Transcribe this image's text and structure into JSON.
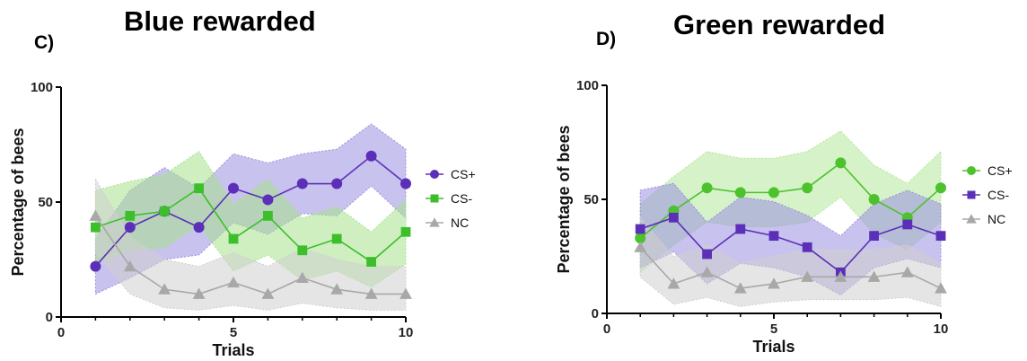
{
  "chart_data": [
    {
      "type": "line",
      "panel_label": "C)",
      "title": "Blue rewarded",
      "xlabel": "Trials",
      "ylabel": "Percentage of bees",
      "xlim": [
        0,
        10
      ],
      "ylim": [
        0,
        100
      ],
      "xticks": [
        "0",
        "5",
        "10"
      ],
      "yticks": [
        "0",
        "50",
        "100"
      ],
      "grid": false,
      "legend_position": "right",
      "x": [
        1,
        2,
        3,
        4,
        5,
        6,
        7,
        8,
        9,
        10
      ],
      "series": [
        {
          "name": "CS+",
          "marker": "circle",
          "color": "#5b2fb8",
          "band_color": "#9a8fe0",
          "values": [
            22,
            39,
            46,
            39,
            56,
            51,
            58,
            58,
            70,
            58
          ],
          "lower": [
            10,
            17,
            25,
            27,
            41,
            36,
            45,
            44,
            57,
            43
          ],
          "upper": [
            34,
            55,
            65,
            56,
            71,
            67,
            71,
            73,
            84,
            73
          ]
        },
        {
          "name": "CS-",
          "marker": "square",
          "color": "#3cbf2a",
          "band_color": "#a8e28e",
          "values": [
            39,
            44,
            46,
            56,
            34,
            44,
            29,
            34,
            24,
            37
          ],
          "lower": [
            23,
            29,
            30,
            40,
            20,
            27,
            16,
            20,
            13,
            23
          ],
          "upper": [
            55,
            59,
            62,
            72,
            49,
            60,
            43,
            48,
            37,
            51
          ]
        },
        {
          "name": "NC",
          "marker": "triangle",
          "color": "#a8a8a8",
          "band_color": "#cfcfcf",
          "values": [
            44,
            22,
            12,
            10,
            15,
            10,
            17,
            12,
            10,
            10
          ],
          "lower": [
            28,
            10,
            4,
            3,
            5,
            3,
            6,
            4,
            3,
            3
          ],
          "upper": [
            60,
            35,
            25,
            22,
            28,
            22,
            30,
            25,
            22,
            22
          ]
        }
      ]
    },
    {
      "type": "line",
      "panel_label": "D)",
      "title": "Green rewarded",
      "xlabel": "Trials",
      "ylabel": "Percentage of bees",
      "xlim": [
        0,
        10
      ],
      "ylim": [
        0,
        100
      ],
      "xticks": [
        "0",
        "5",
        "10"
      ],
      "yticks": [
        "0",
        "50",
        "100"
      ],
      "grid": false,
      "legend_position": "right",
      "x": [
        1,
        2,
        3,
        4,
        5,
        6,
        7,
        8,
        9,
        10
      ],
      "series": [
        {
          "name": "CS+",
          "marker": "circle",
          "color": "#4cc22c",
          "band_color": "#b4e89a",
          "values": [
            33,
            45,
            55,
            53,
            53,
            55,
            66,
            50,
            42,
            55
          ],
          "lower": [
            18,
            30,
            40,
            38,
            38,
            40,
            51,
            35,
            28,
            40
          ],
          "upper": [
            48,
            60,
            71,
            68,
            68,
            71,
            80,
            65,
            57,
            71
          ]
        },
        {
          "name": "CS-",
          "marker": "square",
          "color": "#5b2fb8",
          "band_color": "#9a8fe0",
          "values": [
            37,
            42,
            26,
            37,
            34,
            29,
            18,
            34,
            39,
            34
          ],
          "lower": [
            20,
            27,
            13,
            22,
            20,
            16,
            8,
            20,
            24,
            20
          ],
          "upper": [
            54,
            57,
            40,
            51,
            49,
            43,
            34,
            48,
            54,
            48
          ]
        },
        {
          "name": "NC",
          "marker": "triangle",
          "color": "#a8a8a8",
          "band_color": "#cfcfcf",
          "values": [
            29,
            13,
            18,
            11,
            13,
            16,
            16,
            16,
            18,
            11
          ],
          "lower": [
            16,
            4,
            7,
            3,
            5,
            6,
            6,
            6,
            7,
            3
          ],
          "upper": [
            42,
            25,
            30,
            22,
            25,
            28,
            28,
            28,
            30,
            22
          ]
        }
      ]
    }
  ]
}
